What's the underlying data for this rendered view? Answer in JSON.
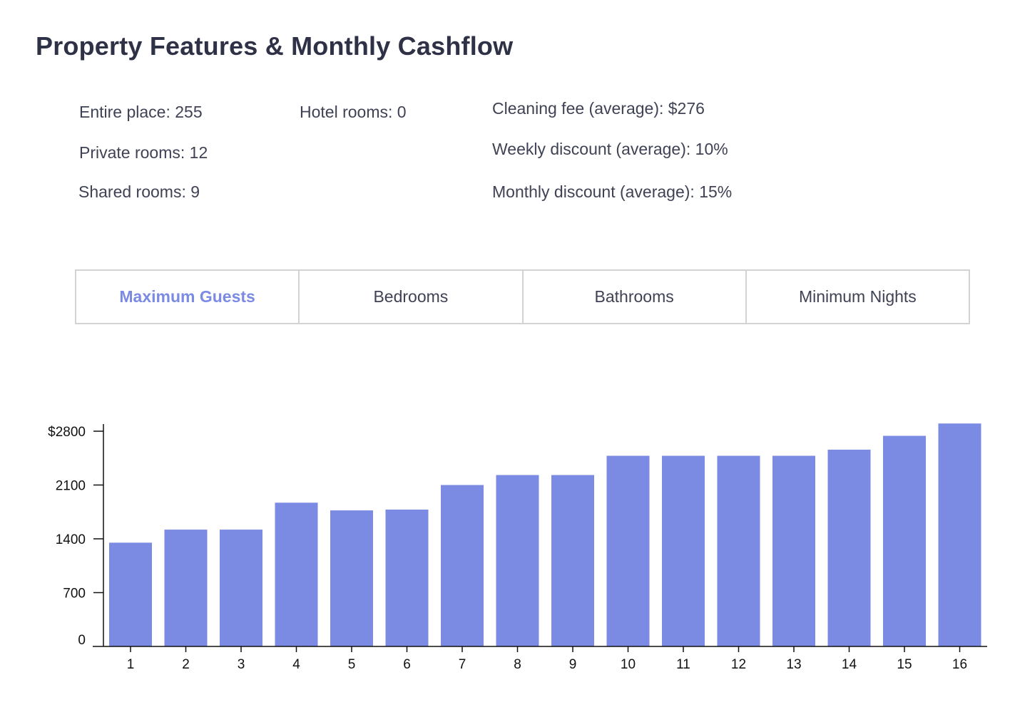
{
  "header": {
    "title": "Property Features & Monthly Cashflow"
  },
  "stats": {
    "entire_place": "Entire place: 255",
    "private_rooms": "Private rooms: 12",
    "shared_rooms": "Shared rooms: 9",
    "hotel_rooms": "Hotel rooms: 0",
    "cleaning_fee": "Cleaning fee (average): $276",
    "weekly_discount": "Weekly discount (average): 10%",
    "monthly_discount": "Monthly discount (average): 15%"
  },
  "tabs": [
    {
      "label": "Maximum Guests",
      "active": true
    },
    {
      "label": "Bedrooms",
      "active": false
    },
    {
      "label": "Bathrooms",
      "active": false
    },
    {
      "label": "Minimum Nights",
      "active": false
    }
  ],
  "colors": {
    "bar": "#7b8ae2",
    "accent": "#7b8ae2",
    "axis": "#111111"
  },
  "chart_data": {
    "type": "bar",
    "categories": [
      "1",
      "2",
      "3",
      "4",
      "5",
      "6",
      "7",
      "8",
      "9",
      "10",
      "11",
      "12",
      "13",
      "14",
      "15",
      "16"
    ],
    "values": [
      1350,
      1520,
      1520,
      1870,
      1770,
      1780,
      2100,
      2230,
      2230,
      2480,
      2480,
      2480,
      2480,
      2560,
      2740,
      2900
    ],
    "yticks": [
      0,
      700,
      1400,
      2100,
      2800
    ],
    "ytick_labels": [
      "0",
      "700",
      "1400",
      "2100",
      "$2800"
    ],
    "ylim": [
      0,
      2800
    ],
    "xlabel": "",
    "ylabel": "",
    "grid": false,
    "legend": "none"
  }
}
